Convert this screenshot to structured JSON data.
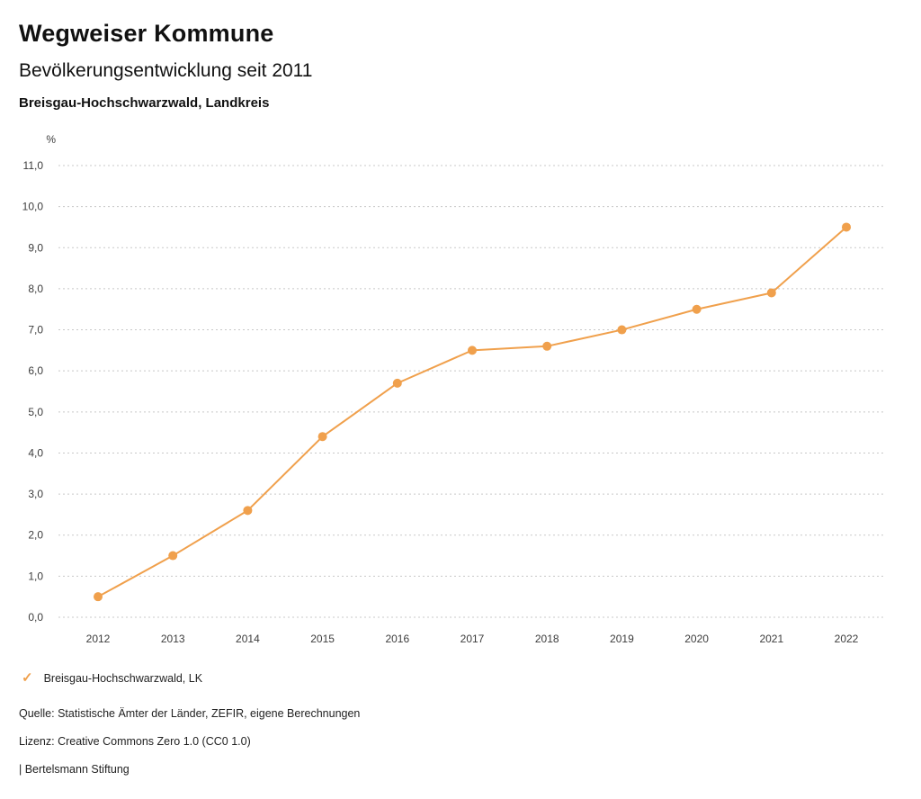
{
  "header": {
    "title": "Wegweiser Kommune",
    "subtitle": "Bevölkerungsentwicklung seit 2011",
    "region": "Breisgau-Hochschwarzwald, Landkreis"
  },
  "chart_data": {
    "type": "line",
    "title": "Bevölkerungsentwicklung seit 2011",
    "unit_label": "%",
    "categories": [
      "2012",
      "2013",
      "2014",
      "2015",
      "2016",
      "2017",
      "2018",
      "2019",
      "2020",
      "2021",
      "2022"
    ],
    "series": [
      {
        "name": "Breisgau-Hochschwarzwald, LK",
        "values": [
          0.5,
          1.5,
          2.6,
          4.4,
          5.7,
          6.5,
          6.6,
          7.0,
          7.5,
          7.9,
          9.5
        ]
      }
    ],
    "ylim": [
      0,
      11
    ],
    "ytick_step": 1,
    "ytick_labels": [
      "0,0",
      "1,0",
      "2,0",
      "3,0",
      "4,0",
      "5,0",
      "6,0",
      "7,0",
      "8,0",
      "9,0",
      "10,0",
      "11,0"
    ],
    "xlabel": "",
    "ylabel": "%",
    "grid": "horizontal-dotted",
    "legend_position": "bottom-left",
    "line_color": "#F0A04C",
    "grid_color": "#c8c8c8",
    "tick_label_color": "#3c3c3c"
  },
  "legend": {
    "check_glyph": "✓",
    "label": "Breisgau-Hochschwarzwald, LK",
    "color": "#F0A04C"
  },
  "footer": {
    "source": "Quelle: Statistische Ämter der Länder, ZEFIR, eigene Berechnungen",
    "license": "Lizenz: Creative Commons Zero 1.0 (CC0 1.0)",
    "attribution": "| Bertelsmann Stiftung"
  }
}
